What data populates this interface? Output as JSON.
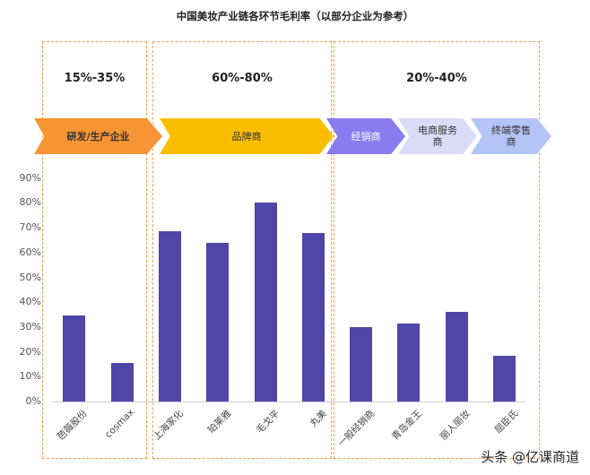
{
  "title": "中国美妆产业链各环节毛利率（以部分企业为参考）",
  "segments": [
    {
      "range": "15%-35%",
      "stages": [
        "研发/生产企业"
      ]
    },
    {
      "range": "60%-80%",
      "stages": [
        "品牌商"
      ]
    },
    {
      "range": "20%-40%",
      "stages": [
        "经销商",
        "电商服务商",
        "终端零售商"
      ]
    }
  ],
  "stages": [
    {
      "label": "研发/生产企业",
      "color": "#f79433",
      "text_color": "#333333"
    },
    {
      "label": "品牌商",
      "color": "#fbbd00",
      "text_color": "#333333"
    },
    {
      "label": "经销商",
      "color": "#8a7cf0",
      "text_color": "#ffffff"
    },
    {
      "label": "电商服务商",
      "color": "#dcdcf8",
      "text_color": "#333333"
    },
    {
      "label": "终端零售商",
      "color": "#b4c4f6",
      "text_color": "#333333"
    }
  ],
  "watermark": "头条 @亿课商道",
  "chart_data": {
    "type": "bar",
    "title": "中国美妆产业链各环节毛利率（以部分企业为参考）",
    "xlabel": "",
    "ylabel": "",
    "ylim": [
      0,
      90
    ],
    "yticks": [
      "0%",
      "10%",
      "20%",
      "30%",
      "40%",
      "50%",
      "60%",
      "70%",
      "80%",
      "90%"
    ],
    "categories": [
      "芭薇股份",
      "cosmax",
      "上海家化",
      "珀莱雅",
      "毛戈平",
      "丸美",
      "一般经销商",
      "青岛金王",
      "丽人丽妆",
      "屈臣氏"
    ],
    "values": [
      34.5,
      15.5,
      68.5,
      64,
      80,
      68,
      30,
      31.5,
      36,
      18.5
    ],
    "groups": [
      {
        "name": "研发/生产企业",
        "range": "15%-35%",
        "categories": [
          "芭薇股份",
          "cosmax"
        ]
      },
      {
        "name": "品牌商",
        "range": "60%-80%",
        "categories": [
          "上海家化",
          "珀莱雅",
          "毛戈平",
          "丸美"
        ]
      },
      {
        "name": "经销商/电商服务商/终端零售商",
        "range": "20%-40%",
        "categories": [
          "一般经销商",
          "青岛金王",
          "丽人丽妆",
          "屈臣氏"
        ]
      }
    ],
    "bar_color": "#5046a8",
    "grid": false,
    "legend": "none"
  }
}
